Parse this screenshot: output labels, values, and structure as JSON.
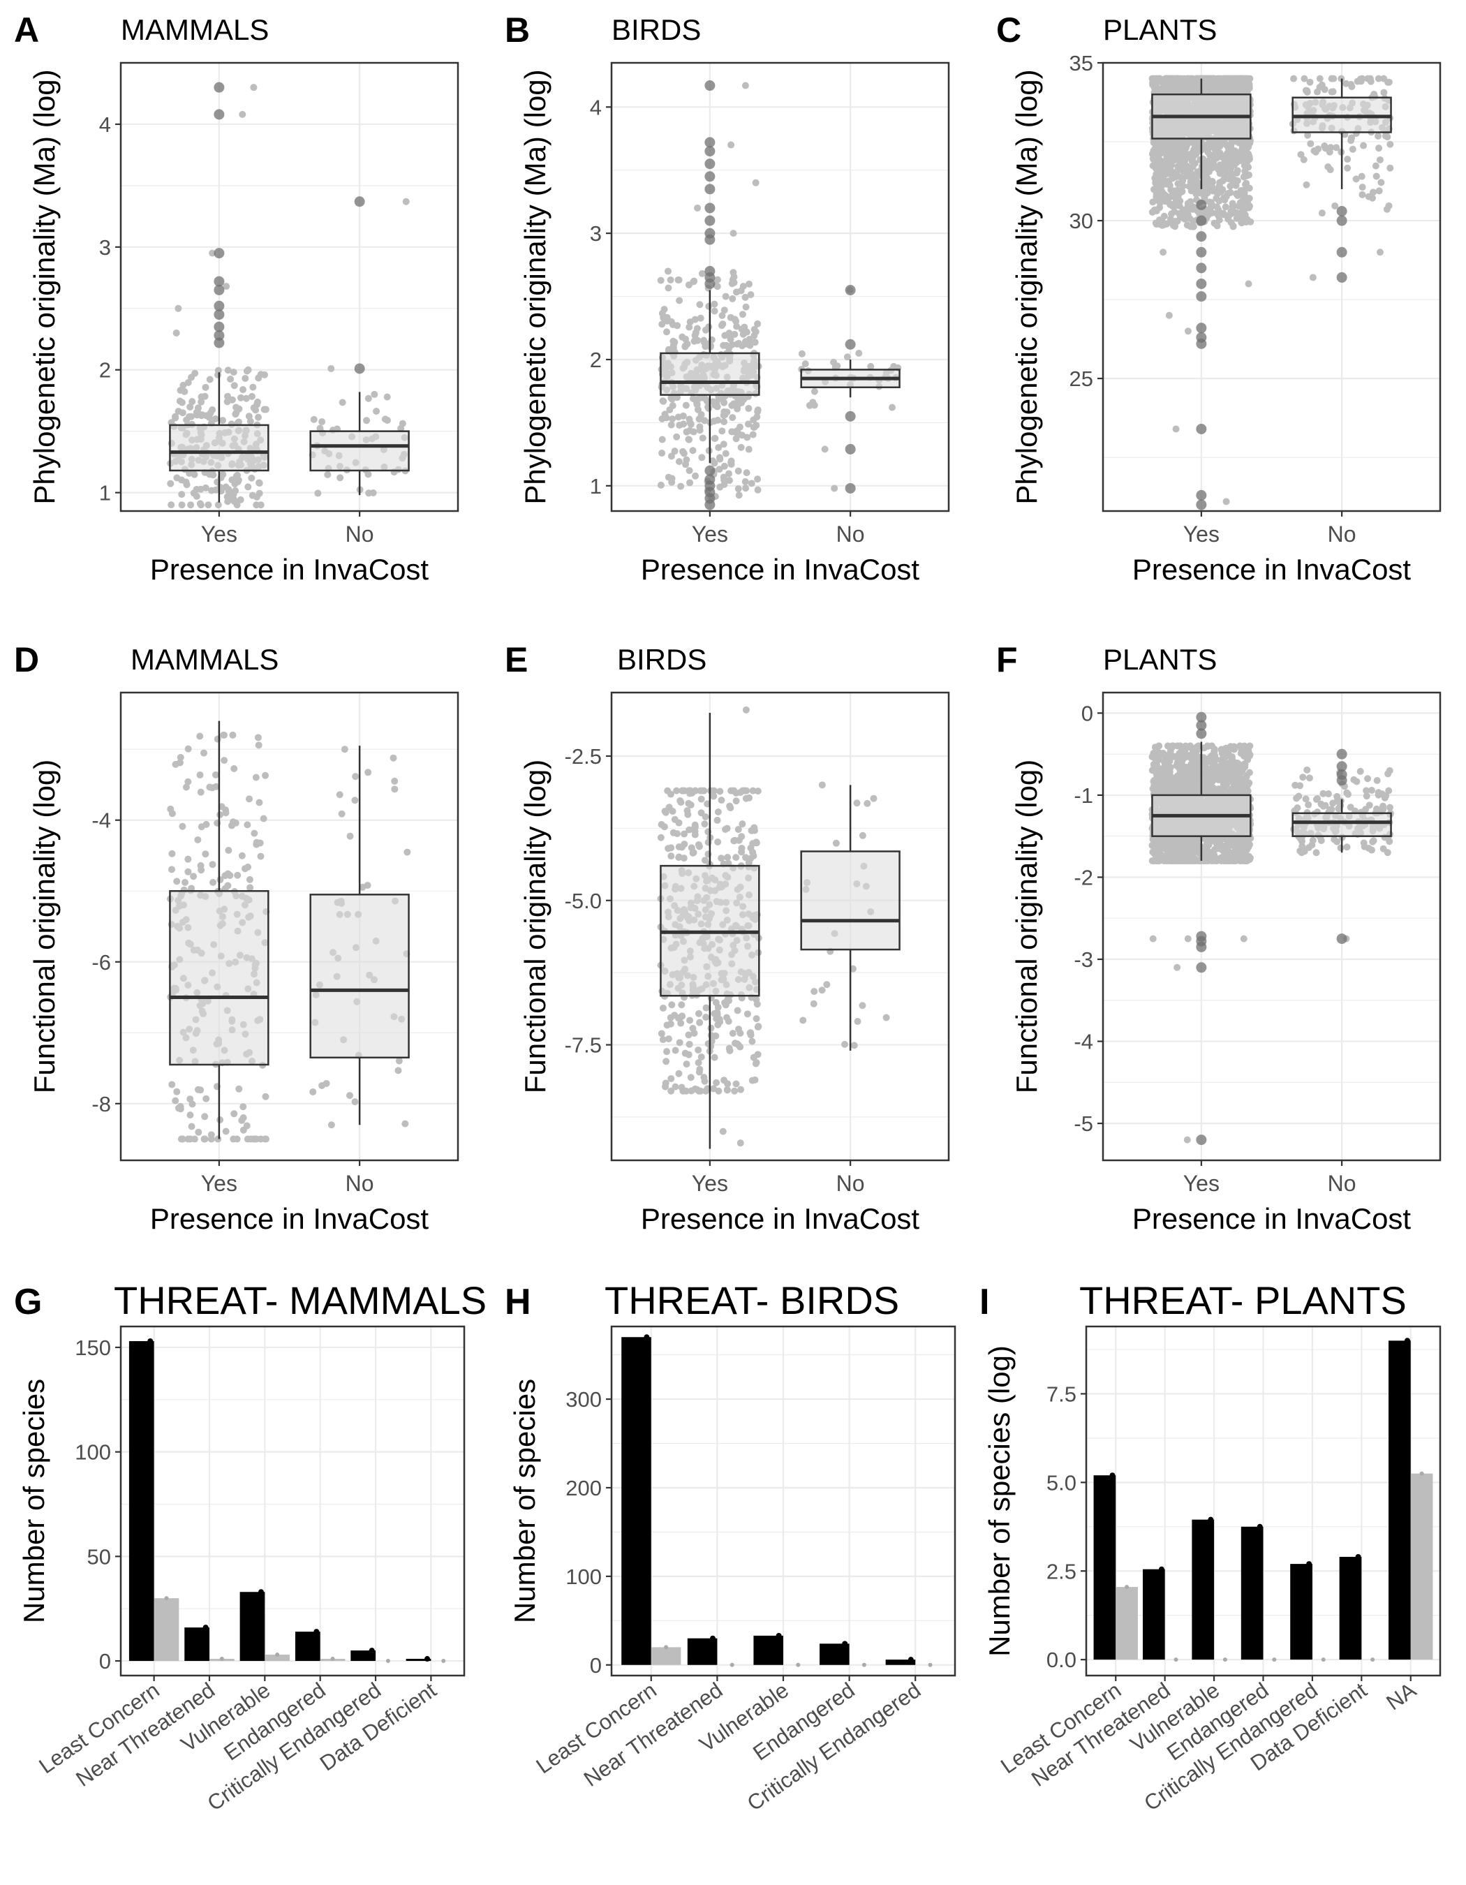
{
  "figure": {
    "background": "#ffffff"
  },
  "colors": {
    "panel_border": "#333333",
    "grid": "#ebebeb",
    "jitter": "#bdbdbd",
    "box_fill": "#dcdcdc",
    "outlier": "#707070",
    "bar_black": "#000000",
    "bar_grey": "#bdbdbd",
    "tick_text": "#4d4d4d",
    "text": "#000000"
  },
  "chart_data": [
    {
      "id": "A",
      "letter": "A",
      "title": "MAMMALS",
      "type": "box",
      "xlabel": "Presence in InvaCost",
      "ylabel": "Phylogenetic originality (Ma) (log)",
      "ylim": [
        0.85,
        4.5
      ],
      "yticks": [
        1,
        2,
        3,
        4
      ],
      "ytick_labels": [
        "1",
        "2",
        "3",
        "4"
      ],
      "categories": [
        "Yes",
        "No"
      ],
      "boxes": [
        {
          "min": 0.92,
          "q1": 1.18,
          "median": 1.33,
          "q3": 1.55,
          "max": 1.98,
          "outliers": [
            2.22,
            2.28,
            2.35,
            2.45,
            2.52,
            2.65,
            2.72,
            2.95,
            4.08,
            4.3
          ],
          "n_jitter": 220,
          "jitter_range": [
            0.9,
            2.0
          ],
          "jitter_extra": [
            2.3,
            2.5,
            2.68,
            2.95,
            4.08,
            4.3
          ]
        },
        {
          "min": 0.98,
          "q1": 1.18,
          "median": 1.38,
          "q3": 1.5,
          "max": 1.82,
          "outliers": [
            2.01,
            3.37
          ],
          "n_jitter": 45,
          "jitter_range": [
            0.98,
            1.8
          ],
          "jitter_extra": [
            2.01,
            3.37
          ]
        }
      ]
    },
    {
      "id": "B",
      "letter": "B",
      "title": "BIRDS",
      "type": "box",
      "xlabel": "Presence in InvaCost",
      "ylabel": "Phylogenetic originality (Ma) (log)",
      "ylim": [
        0.8,
        4.35
      ],
      "yticks": [
        1,
        2,
        3,
        4
      ],
      "ytick_labels": [
        "1",
        "2",
        "3",
        "4"
      ],
      "categories": [
        "Yes",
        "No"
      ],
      "boxes": [
        {
          "min": 1.18,
          "q1": 1.72,
          "median": 1.82,
          "q3": 2.05,
          "max": 2.55,
          "outliers": [
            0.85,
            0.9,
            0.95,
            1.0,
            1.05,
            1.12,
            2.6,
            2.65,
            2.7,
            2.95,
            3.0,
            3.1,
            3.2,
            3.35,
            3.45,
            3.55,
            3.65,
            3.72,
            4.17
          ],
          "n_jitter": 380,
          "jitter_range": [
            0.9,
            2.7
          ],
          "jitter_extra": [
            3.0,
            3.2,
            3.4,
            3.7,
            4.17
          ]
        },
        {
          "min": 1.7,
          "q1": 1.78,
          "median": 1.85,
          "q3": 1.92,
          "max": 2.0,
          "outliers": [
            0.98,
            1.29,
            1.55,
            2.12,
            2.55
          ],
          "n_jitter": 30,
          "jitter_range": [
            1.6,
            2.05
          ],
          "jitter_extra": [
            0.98,
            1.29,
            2.55
          ]
        }
      ]
    },
    {
      "id": "C",
      "letter": "C",
      "title": "PLANTS",
      "type": "box",
      "xlabel": "Presence in InvaCost",
      "ylabel": "Phylogenetic originality (Ma) (log)",
      "ylim": [
        20.8,
        35.0
      ],
      "yticks": [
        25,
        30,
        35
      ],
      "ytick_labels": [
        "25",
        "30",
        "35"
      ],
      "categories": [
        "Yes",
        "No"
      ],
      "boxes": [
        {
          "min": 31.0,
          "q1": 32.6,
          "median": 33.3,
          "q3": 34.0,
          "max": 34.5,
          "outliers": [
            30.5,
            30.0,
            29.5,
            29.0,
            28.5,
            28.0,
            27.6,
            26.6,
            26.3,
            26.1,
            23.4,
            21.3,
            21.0
          ],
          "n_jitter": 1600,
          "jitter_range": [
            29.8,
            34.5
          ],
          "jitter_extra": [
            26.5,
            27.0,
            28.0,
            29.0,
            23.4,
            21.1
          ]
        },
        {
          "min": 31.0,
          "q1": 32.8,
          "median": 33.3,
          "q3": 33.9,
          "max": 34.5,
          "outliers": [
            30.3,
            30.0,
            29.0,
            28.2
          ],
          "n_jitter": 140,
          "jitter_range": [
            30.2,
            34.5
          ],
          "jitter_extra": [
            28.2,
            29.0
          ]
        }
      ]
    },
    {
      "id": "D",
      "letter": "D",
      "title": "MAMMALS",
      "type": "box",
      "xlabel": "Presence in InvaCost",
      "ylabel": "Functional originality (log)",
      "ylim": [
        -8.8,
        -2.2
      ],
      "yticks": [
        -8,
        -6,
        -4
      ],
      "ytick_labels": [
        "-8",
        "-6",
        "-4"
      ],
      "categories": [
        "Yes",
        "No"
      ],
      "boxes": [
        {
          "min": -8.5,
          "q1": -7.45,
          "median": -6.5,
          "q3": -5.0,
          "max": -2.6,
          "outliers": [],
          "n_jitter": 230,
          "jitter_range": [
            -8.5,
            -2.8
          ],
          "jitter_extra": []
        },
        {
          "min": -8.3,
          "q1": -7.35,
          "median": -6.4,
          "q3": -5.05,
          "max": -2.95,
          "outliers": [],
          "n_jitter": 45,
          "jitter_range": [
            -8.3,
            -3.0
          ],
          "jitter_extra": []
        }
      ]
    },
    {
      "id": "E",
      "letter": "E",
      "title": "BIRDS",
      "type": "box",
      "xlabel": "Presence in InvaCost",
      "ylabel": "Functional originality (log)",
      "ylim": [
        -9.5,
        -1.4
      ],
      "yticks": [
        -7.5,
        -5.0,
        -2.5
      ],
      "ytick_labels": [
        "-7.5",
        "-5.0",
        "-2.5"
      ],
      "categories": [
        "Yes",
        "No"
      ],
      "boxes": [
        {
          "min": -9.3,
          "q1": -6.65,
          "median": -5.55,
          "q3": -4.4,
          "max": -1.75,
          "outliers": [],
          "n_jitter": 420,
          "jitter_range": [
            -8.3,
            -3.1
          ],
          "jitter_extra": [
            -9.0,
            -9.2,
            -1.7
          ]
        },
        {
          "min": -7.6,
          "q1": -5.85,
          "median": -5.35,
          "q3": -4.15,
          "max": -3.0,
          "outliers": [],
          "n_jitter": 25,
          "jitter_range": [
            -7.6,
            -3.0
          ],
          "jitter_extra": []
        }
      ]
    },
    {
      "id": "F",
      "letter": "F",
      "title": "PLANTS",
      "type": "box",
      "xlabel": "Presence in InvaCost",
      "ylabel": "Functional originality (log)",
      "ylim": [
        -5.45,
        0.25
      ],
      "yticks": [
        -5,
        -4,
        -3,
        -2,
        -1,
        0
      ],
      "ytick_labels": [
        "-5",
        "-4",
        "-3",
        "-2",
        "-1",
        "0"
      ],
      "categories": [
        "Yes",
        "No"
      ],
      "boxes": [
        {
          "min": -1.8,
          "q1": -1.5,
          "median": -1.25,
          "q3": -1.0,
          "max": -0.35,
          "outliers": [
            -0.05,
            -0.15,
            -0.25,
            -2.72,
            -2.78,
            -2.85,
            -3.1,
            -5.2
          ],
          "n_jitter": 1500,
          "jitter_range": [
            -1.8,
            -0.4
          ],
          "jitter_extra": [
            -2.75,
            -2.75,
            -2.75,
            -3.1,
            -5.2
          ]
        },
        {
          "min": -1.7,
          "q1": -1.5,
          "median": -1.33,
          "q3": -1.22,
          "max": -1.05,
          "outliers": [
            -0.5,
            -0.65,
            -0.75,
            -0.82,
            -2.75
          ],
          "n_jitter": 160,
          "jitter_range": [
            -1.7,
            -0.65
          ],
          "jitter_extra": [
            -2.75
          ]
        }
      ]
    },
    {
      "id": "G",
      "letter": "G",
      "title": "THREAT- MAMMALS",
      "type": "bar",
      "xlabel": "",
      "ylabel": "Number of species",
      "ylim": [
        -7,
        160
      ],
      "yticks": [
        0,
        50,
        100,
        150
      ],
      "ytick_labels": [
        "0",
        "50",
        "100",
        "150"
      ],
      "categories": [
        "Least Concern",
        "Near Threatened",
        "Vulnerable",
        "Endangered",
        "Critically Endangered",
        "Data Deficient"
      ],
      "series": [
        {
          "color": "black",
          "values": [
            153,
            16,
            33,
            14,
            5,
            1
          ]
        },
        {
          "color": "grey",
          "values": [
            30,
            1,
            3,
            1,
            0,
            0
          ]
        }
      ]
    },
    {
      "id": "H",
      "letter": "H",
      "title": "THREAT- BIRDS",
      "type": "bar",
      "xlabel": "",
      "ylabel": "Number of species",
      "ylim": [
        -12,
        382
      ],
      "yticks": [
        0,
        100,
        200,
        300
      ],
      "ytick_labels": [
        "0",
        "100",
        "200",
        "300"
      ],
      "categories": [
        "Least Concern",
        "Near Threatened",
        "Vulnerable",
        "Endangered",
        "Critically Endangered"
      ],
      "series": [
        {
          "color": "black",
          "values": [
            370,
            30,
            33,
            24,
            6
          ]
        },
        {
          "color": "grey",
          "values": [
            20,
            0,
            0,
            0,
            0
          ]
        }
      ]
    },
    {
      "id": "I",
      "letter": "I",
      "title": "THREAT- PLANTS",
      "type": "bar",
      "xlabel": "",
      "ylabel": "Number of species (log)",
      "ylim": [
        -0.45,
        9.4
      ],
      "yticks": [
        0.0,
        2.5,
        5.0,
        7.5
      ],
      "ytick_labels": [
        "0.0",
        "2.5",
        "5.0",
        "7.5"
      ],
      "categories": [
        "Least Concern",
        "Near Threatened",
        "Vulnerable",
        "Endangered",
        "Critically Endangered",
        "Data Deficient",
        "NA"
      ],
      "series": [
        {
          "color": "black",
          "values": [
            5.2,
            2.55,
            3.95,
            3.75,
            2.7,
            2.9,
            9.0
          ]
        },
        {
          "color": "grey",
          "values": [
            2.05,
            0,
            0,
            0,
            0,
            0,
            5.25
          ]
        }
      ]
    }
  ]
}
